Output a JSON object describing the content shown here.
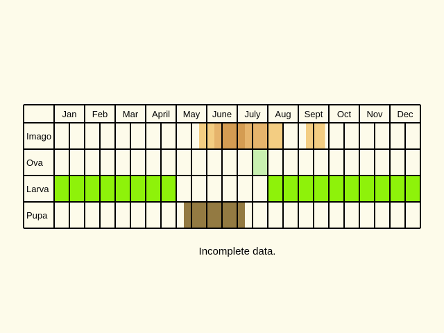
{
  "months": [
    "Jan",
    "Feb",
    "Mar",
    "April",
    "May",
    "June",
    "July",
    "Aug",
    "Sept",
    "Oct",
    "Nov",
    "Dec"
  ],
  "stages": [
    "Imago",
    "Ova",
    "Larva",
    "Pupa"
  ],
  "note": "Incomplete data.",
  "colors": {
    "background": "#fdfbea",
    "grid": "#000000",
    "imago_light": "#f3cd82",
    "imago_medium": "#e6b46c",
    "imago_dark": "#d49c52",
    "ova": "#c8f0b0",
    "larva": "#8ef20a",
    "pupa": "#937a42"
  },
  "chart_data": {
    "type": "table",
    "periods_per_month": 2,
    "rows": [
      {
        "stage": "Imago",
        "segments": [
          {
            "from": 9.5,
            "to": 10.5,
            "shade": "imago_light"
          },
          {
            "from": 10.5,
            "to": 11.0,
            "shade": "imago_medium"
          },
          {
            "from": 11.0,
            "to": 12.5,
            "shade": "imago_dark"
          },
          {
            "from": 12.5,
            "to": 14.0,
            "shade": "imago_medium"
          },
          {
            "from": 14.0,
            "to": 15.0,
            "shade": "imago_light"
          },
          {
            "from": 16.5,
            "to": 17.75,
            "shade": "imago_light"
          }
        ]
      },
      {
        "stage": "Ova",
        "segments": [
          {
            "from": 13.0,
            "to": 14.0,
            "shade": "ova"
          }
        ]
      },
      {
        "stage": "Larva",
        "segments": [
          {
            "from": 0.0,
            "to": 8.0,
            "shade": "larva"
          },
          {
            "from": 14.0,
            "to": 24.0,
            "shade": "larva"
          }
        ]
      },
      {
        "stage": "Pupa",
        "segments": [
          {
            "from": 8.5,
            "to": 12.5,
            "shade": "pupa"
          }
        ]
      }
    ]
  }
}
